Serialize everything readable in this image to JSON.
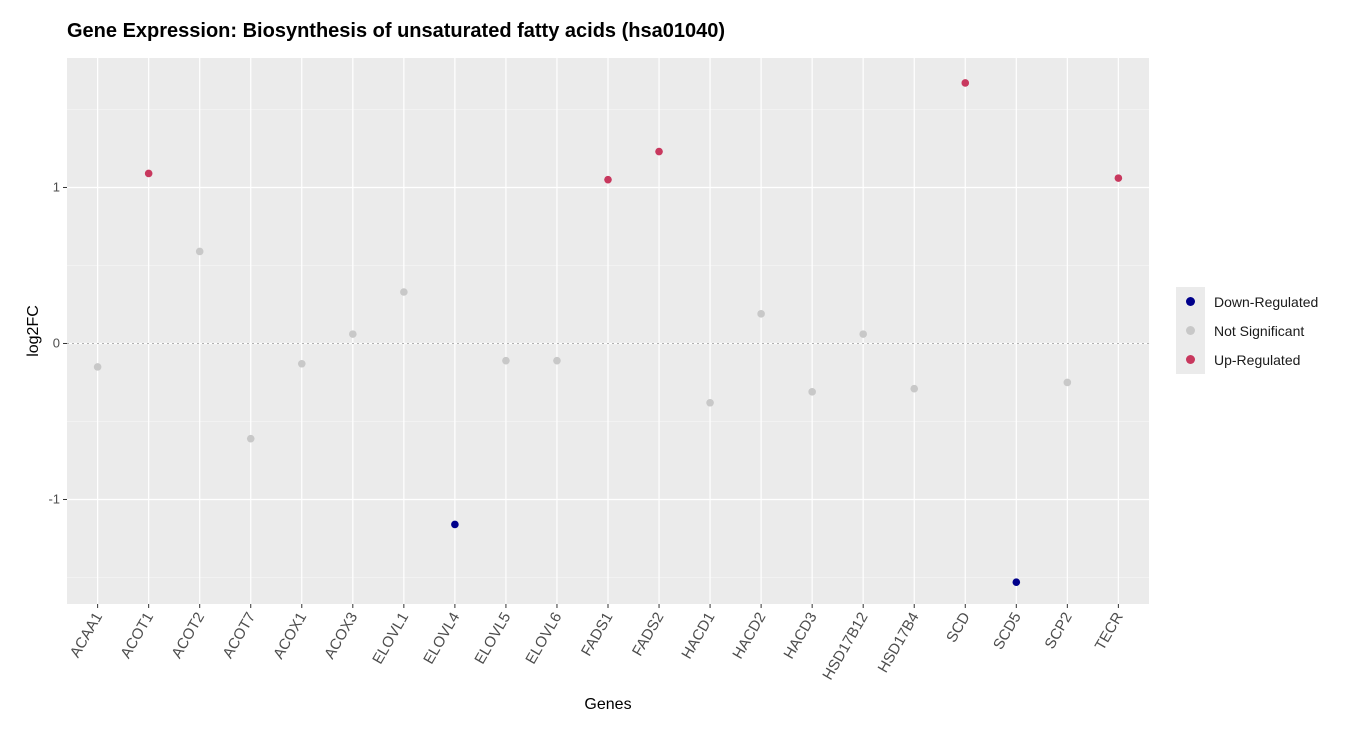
{
  "chart_data": {
    "type": "scatter",
    "title": "Gene Expression: Biosynthesis of unsaturated fatty acids (hsa01040)",
    "xlabel": "Genes",
    "ylabel": "log2FC",
    "ylim": [
      -1.67,
      1.83
    ],
    "yticks": [
      -1,
      0,
      1
    ],
    "reference_line": 0,
    "categories": [
      "ACAA1",
      "ACOT1",
      "ACOT2",
      "ACOT7",
      "ACOX1",
      "ACOX3",
      "ELOVL1",
      "ELOVL4",
      "ELOVL5",
      "ELOVL6",
      "FADS1",
      "FADS2",
      "HACD1",
      "HACD2",
      "HACD3",
      "HSD17B12",
      "HSD17B4",
      "SCD",
      "SCD5",
      "SCP2",
      "TECR"
    ],
    "values": [
      -0.15,
      1.09,
      0.59,
      -0.61,
      -0.13,
      0.06,
      0.33,
      -1.16,
      -0.11,
      -0.11,
      1.05,
      1.23,
      -0.38,
      0.19,
      -0.31,
      0.06,
      -0.29,
      1.67,
      -1.53,
      -0.25,
      1.06
    ],
    "status": [
      "Not Significant",
      "Up-Regulated",
      "Not Significant",
      "Not Significant",
      "Not Significant",
      "Not Significant",
      "Not Significant",
      "Down-Regulated",
      "Not Significant",
      "Not Significant",
      "Up-Regulated",
      "Up-Regulated",
      "Not Significant",
      "Not Significant",
      "Not Significant",
      "Not Significant",
      "Not Significant",
      "Up-Regulated",
      "Down-Regulated",
      "Not Significant",
      "Up-Regulated"
    ],
    "legend": {
      "position": "right",
      "entries": [
        {
          "label": "Down-Regulated",
          "color": "#00008b"
        },
        {
          "label": "Not Significant",
          "color": "#c8c8c8"
        },
        {
          "label": "Up-Regulated",
          "color": "#c8385e"
        }
      ]
    },
    "grid": true,
    "panel_background": "#ebebeb"
  }
}
